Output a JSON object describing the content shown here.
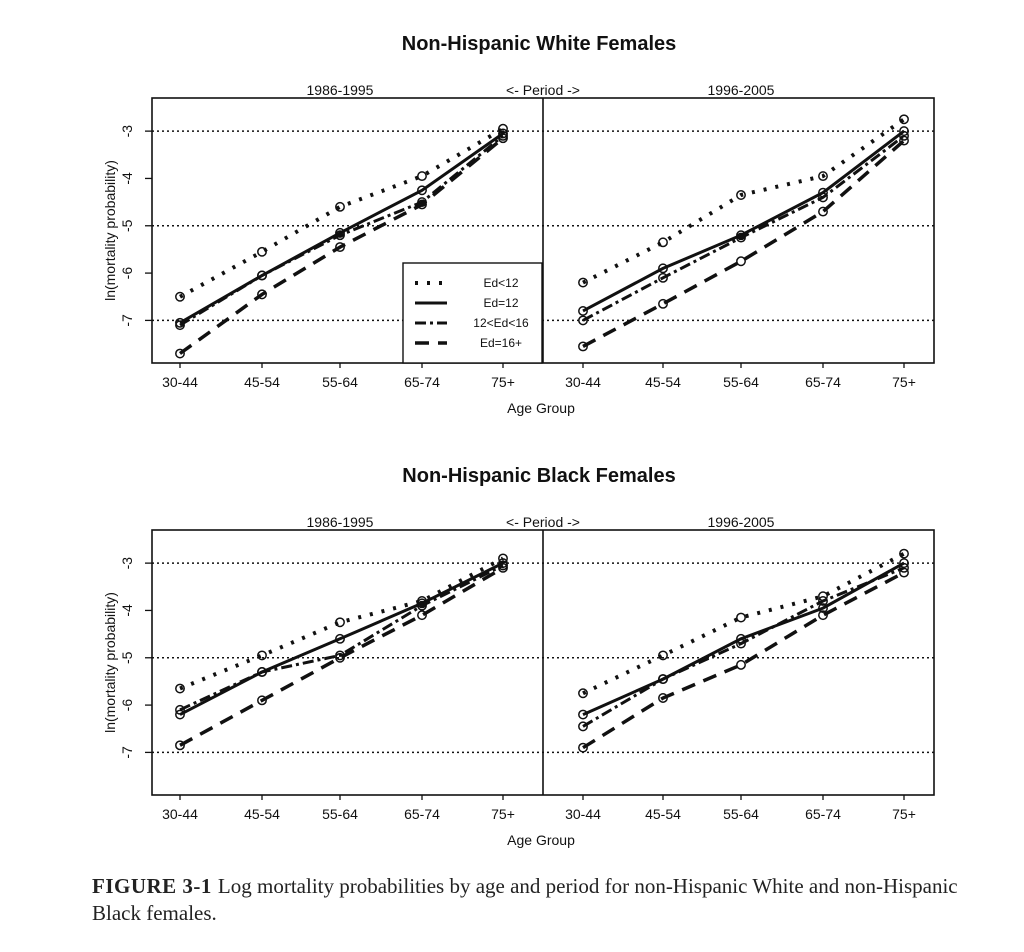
{
  "figure": {
    "caption_label": "FIGURE 3-1",
    "caption_text": "Log mortality probabilities by age and period for non-Hispanic White and non-Hispanic Black females."
  },
  "chart_data": [
    {
      "type": "line",
      "title": "Non-Hispanic White Females",
      "xlabel": "Age Group",
      "ylabel": "ln(mortality probability)",
      "ylim": [
        -7.9,
        -2.3
      ],
      "yticks": [
        -3,
        -4,
        -5,
        -6,
        -7
      ],
      "reference_lines": [
        -3,
        -5,
        -7
      ],
      "period_label": "<- Period ->",
      "categories": [
        "30-44",
        "45-54",
        "55-64",
        "65-74",
        "75+"
      ],
      "legend": {
        "position": "inside bottom-right of left panel",
        "entries": [
          "Ed<12",
          "Ed=12",
          "12<Ed<16",
          "Ed=16+"
        ]
      },
      "panels": [
        {
          "period": "1986-1995",
          "series": [
            {
              "name": "Ed<12",
              "values": [
                -6.5,
                -5.55,
                -4.6,
                -3.95,
                -2.95
              ]
            },
            {
              "name": "Ed=12",
              "values": [
                -7.05,
                -6.05,
                -5.15,
                -4.25,
                -3.05
              ]
            },
            {
              "name": "12<Ed<16",
              "values": [
                -7.1,
                -6.05,
                -5.2,
                -4.5,
                -3.1
              ]
            },
            {
              "name": "Ed=16+",
              "values": [
                -7.7,
                -6.45,
                -5.45,
                -4.55,
                -3.15
              ]
            }
          ]
        },
        {
          "period": "1996-2005",
          "series": [
            {
              "name": "Ed<12",
              "values": [
                -6.2,
                -5.35,
                -4.35,
                -3.95,
                -2.75
              ]
            },
            {
              "name": "Ed=12",
              "values": [
                -6.8,
                -5.9,
                -5.2,
                -4.3,
                -3.0
              ]
            },
            {
              "name": "12<Ed<16",
              "values": [
                -7.0,
                -6.1,
                -5.25,
                -4.4,
                -3.1
              ]
            },
            {
              "name": "Ed=16+",
              "values": [
                -7.55,
                -6.65,
                -5.75,
                -4.7,
                -3.2
              ]
            }
          ]
        }
      ]
    },
    {
      "type": "line",
      "title": "Non-Hispanic Black Females",
      "xlabel": "Age Group",
      "ylabel": "ln(mortality probability)",
      "ylim": [
        -7.9,
        -2.3
      ],
      "yticks": [
        -3,
        -4,
        -5,
        -6,
        -7
      ],
      "reference_lines": [
        -3,
        -5,
        -7
      ],
      "period_label": "<- Period ->",
      "categories": [
        "30-44",
        "45-54",
        "55-64",
        "65-74",
        "75+"
      ],
      "panels": [
        {
          "period": "1986-1995",
          "series": [
            {
              "name": "Ed<12",
              "values": [
                -5.65,
                -4.95,
                -4.25,
                -3.8,
                -2.9
              ]
            },
            {
              "name": "Ed=12",
              "values": [
                -6.2,
                -5.3,
                -4.6,
                -3.85,
                -3.0
              ]
            },
            {
              "name": "12<Ed<16",
              "values": [
                -6.1,
                -5.3,
                -4.95,
                -3.9,
                -3.05
              ]
            },
            {
              "name": "Ed=16+",
              "values": [
                -6.85,
                -5.9,
                -5.0,
                -4.1,
                -3.1
              ]
            }
          ]
        },
        {
          "period": "1996-2005",
          "series": [
            {
              "name": "Ed<12",
              "values": [
                -5.75,
                -4.95,
                -4.15,
                -3.7,
                -2.8
              ]
            },
            {
              "name": "Ed=12",
              "values": [
                -6.2,
                -5.45,
                -4.6,
                -3.95,
                -3.0
              ]
            },
            {
              "name": "12<Ed<16",
              "values": [
                -6.45,
                -5.45,
                -4.7,
                -3.8,
                -3.1
              ]
            },
            {
              "name": "Ed=16+",
              "values": [
                -6.9,
                -5.85,
                -5.15,
                -4.1,
                -3.2
              ]
            }
          ]
        }
      ]
    }
  ]
}
